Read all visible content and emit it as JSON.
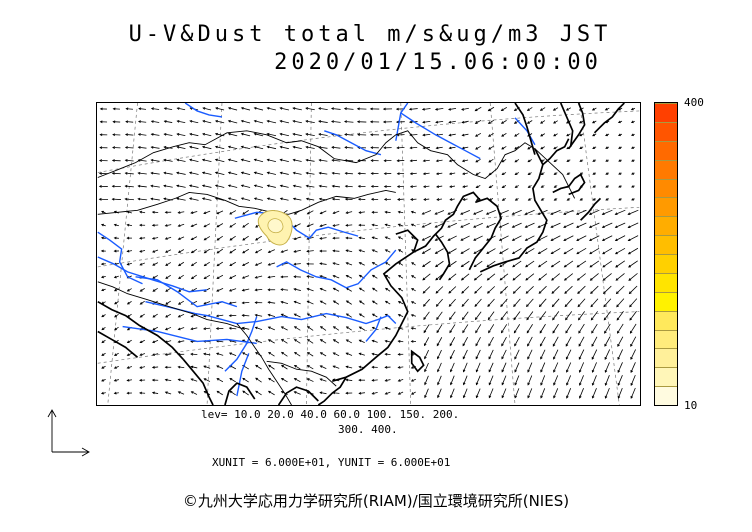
{
  "title": {
    "line1": "U-V&Dust total m/s&ug/m3 JST",
    "line2": "2020/01/15.06:00:00"
  },
  "legend": {
    "max_label": "400",
    "min_label": "10",
    "colors": [
      "#fffbe0",
      "#fff6b8",
      "#fff09a",
      "#ffec7c",
      "#ffe95c",
      "#fff200",
      "#ffe400",
      "#ffd000",
      "#ffbe00",
      "#ffad00",
      "#ff9a00",
      "#ff8a00",
      "#ff7a00",
      "#ff6a00",
      "#ff5500",
      "#ff4000"
    ]
  },
  "levels": {
    "line1": "lev= 10.0 20.0 40.0 60.0 100. 150. 200.",
    "line2": "300. 400."
  },
  "units": "XUNIT = 6.000E+01, YUNIT = 6.000E+01",
  "copyright": "©九州大学応用力学研究所(RIAM)/国立環境研究所(NIES)",
  "dust_plume": {
    "lon": 107,
    "lat": 39.5,
    "level": 20
  }
}
